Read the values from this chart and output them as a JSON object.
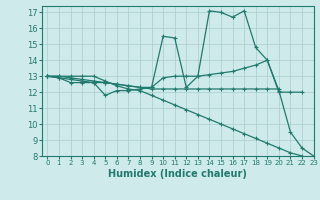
{
  "title": "",
  "xlabel": "Humidex (Indice chaleur)",
  "xlim": [
    -0.5,
    23
  ],
  "ylim": [
    8,
    17.4
  ],
  "xticks": [
    0,
    1,
    2,
    3,
    4,
    5,
    6,
    7,
    8,
    9,
    10,
    11,
    12,
    13,
    14,
    15,
    16,
    17,
    18,
    19,
    20,
    21,
    22,
    23
  ],
  "yticks": [
    8,
    9,
    10,
    11,
    12,
    13,
    14,
    15,
    16,
    17
  ],
  "background_color": "#ceeaea",
  "grid_color": "#aacccc",
  "line_color": "#217a6e",
  "lines": [
    [
      13.0,
      12.9,
      12.6,
      12.6,
      12.6,
      11.8,
      12.1,
      12.1,
      12.2,
      12.3,
      15.5,
      15.4,
      12.3,
      13.0,
      17.1,
      17.0,
      16.7,
      17.1,
      14.8,
      14.0,
      12.1,
      9.5,
      8.5,
      8.0
    ],
    [
      13.0,
      13.0,
      12.9,
      12.8,
      12.7,
      12.6,
      12.5,
      12.4,
      12.3,
      12.3,
      12.9,
      13.0,
      13.0,
      13.0,
      13.1,
      13.2,
      13.3,
      13.5,
      13.7,
      14.0,
      12.0,
      12.0,
      12.0,
      null
    ],
    [
      13.0,
      12.9,
      12.8,
      12.7,
      12.6,
      12.6,
      12.5,
      12.4,
      12.3,
      12.2,
      12.2,
      12.2,
      12.2,
      12.2,
      12.2,
      12.2,
      12.2,
      12.2,
      12.2,
      12.2,
      12.2,
      null,
      null,
      null
    ],
    [
      13.0,
      13.0,
      13.0,
      13.0,
      13.0,
      12.7,
      12.4,
      12.2,
      12.1,
      11.8,
      11.5,
      11.2,
      10.9,
      10.6,
      10.3,
      10.0,
      9.7,
      9.4,
      9.1,
      8.8,
      8.5,
      8.2,
      8.0,
      null
    ]
  ]
}
